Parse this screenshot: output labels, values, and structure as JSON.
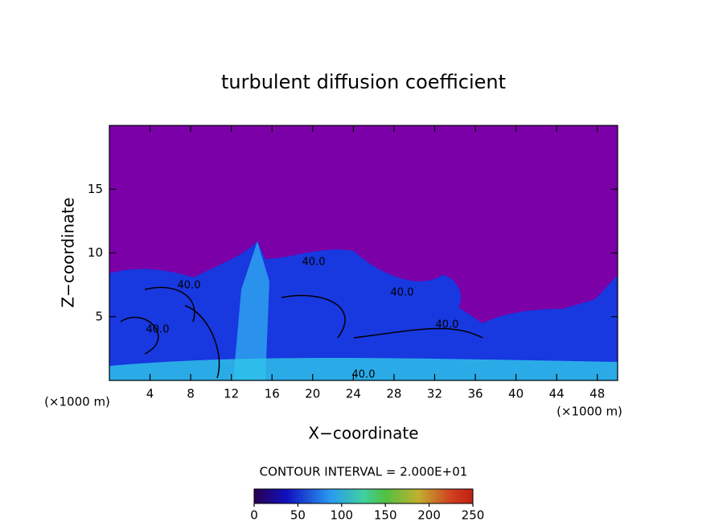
{
  "chart_data": {
    "type": "heatmap",
    "title": "turbulent diffusion coefficient",
    "x_label": "X−coordinate",
    "y_label": "Z−coordinate",
    "x_unit": "(×1000 m)",
    "y_unit": "(×1000 m)",
    "xlim": [
      0,
      50
    ],
    "xticks": [
      4,
      8,
      12,
      16,
      20,
      24,
      28,
      32,
      36,
      40,
      44,
      48
    ],
    "ylim": [
      0,
      20
    ],
    "yticks": [
      5,
      10,
      15
    ],
    "contour_interval": "CONTOUR INTERVAL = 2.000E+01",
    "contour_labels": [
      "40.0",
      "40.0",
      "40.0",
      "40.0",
      "40.0",
      "40.0"
    ],
    "clim": [
      0,
      250
    ],
    "cticks": [
      0,
      50,
      100,
      150,
      200,
      250
    ]
  }
}
